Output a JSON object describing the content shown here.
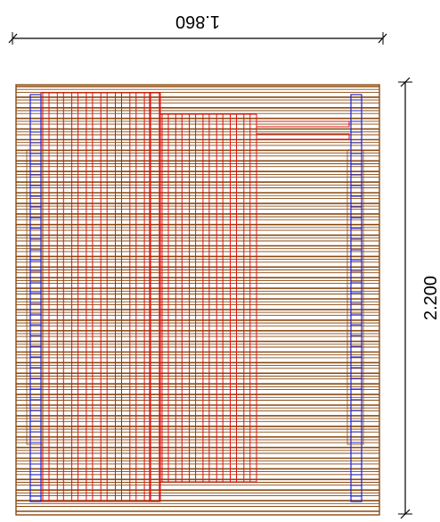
{
  "dimensions": {
    "width_label": "1.860",
    "height_label": "2.200"
  },
  "colors": {
    "plank": "#8a4a10",
    "red_frame": "#e01010",
    "blue_frame": "#2020d0",
    "dim_line": "#000000"
  }
}
